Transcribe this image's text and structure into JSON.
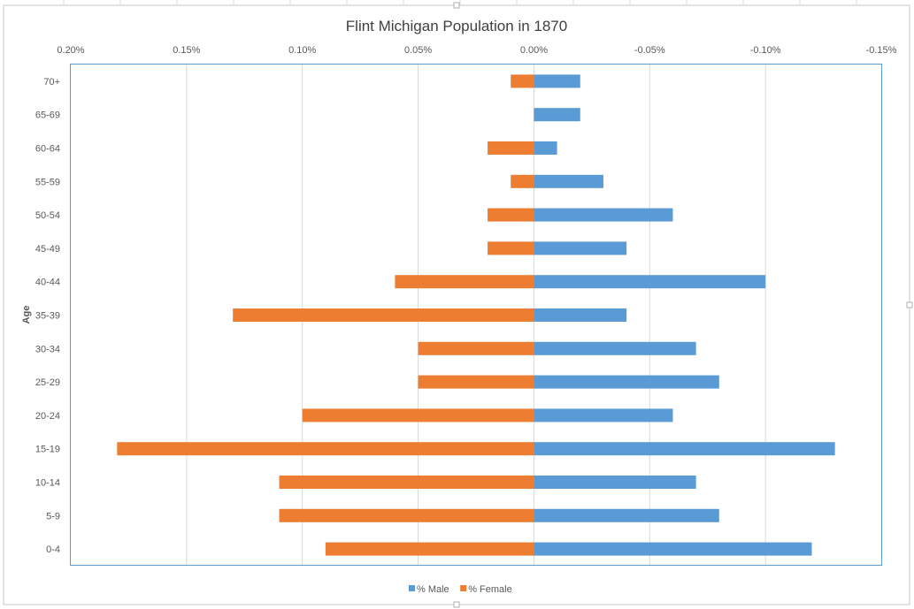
{
  "chart_data": {
    "type": "bar",
    "orientation": "horizontal",
    "title": "Flint Michigan Population in 1870",
    "ylabel": "Age",
    "xlabel": "",
    "xlim": [
      0.2,
      -0.15
    ],
    "x_ticks": [
      0.2,
      0.15,
      0.1,
      0.05,
      0.0,
      -0.05,
      -0.1,
      -0.15
    ],
    "x_tick_labels": [
      "0.20%",
      "0.15%",
      "0.10%",
      "0.05%",
      "0.00%",
      "-0.05%",
      "-0.10%",
      "-0.15%"
    ],
    "categories": [
      "70+",
      "65-69",
      "60-64",
      "55-59",
      "50-54",
      "45-49",
      "40-44",
      "35-39",
      "30-34",
      "25-29",
      "20-24",
      "15-19",
      "10-14",
      "5-9",
      "0-4"
    ],
    "series": [
      {
        "name": "% Male",
        "color": "#5b9bd5",
        "values": [
          -0.02,
          -0.02,
          -0.01,
          -0.03,
          -0.06,
          -0.04,
          -0.1,
          -0.04,
          -0.07,
          -0.08,
          -0.06,
          -0.13,
          -0.07,
          -0.08,
          -0.12
        ]
      },
      {
        "name": "% Female",
        "color": "#ed7d31",
        "values": [
          0.01,
          0.0,
          0.02,
          0.01,
          0.02,
          0.02,
          0.06,
          0.13,
          0.05,
          0.05,
          0.1,
          0.18,
          0.11,
          0.11,
          0.09
        ]
      }
    ],
    "legend_position": "bottom",
    "grid": true
  }
}
